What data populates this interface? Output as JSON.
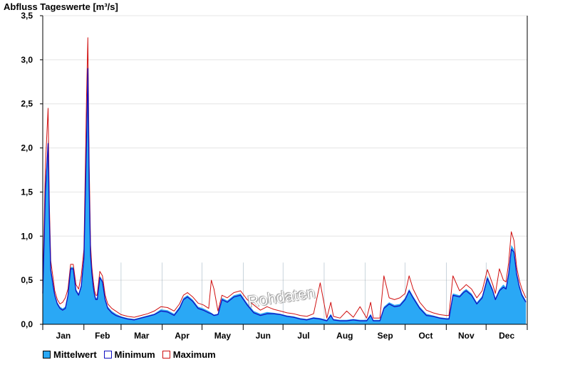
{
  "chart_data": {
    "type": "area",
    "title": "Abfluss Tageswerte [m³/s]",
    "ylim": [
      0,
      3.5
    ],
    "yticks": [
      "0,0",
      "0,5",
      "1,0",
      "1,5",
      "2,0",
      "2,5",
      "3,0",
      "3,5"
    ],
    "months": [
      "Jan",
      "Feb",
      "Mar",
      "Apr",
      "May",
      "Jun",
      "Jul",
      "Aug",
      "Sep",
      "Oct",
      "Nov",
      "Dec"
    ],
    "grid": true,
    "legend_position": "bottom-left",
    "x_day_of_year": [
      1,
      3,
      5,
      6,
      7,
      9,
      10,
      12,
      14,
      16,
      18,
      20,
      22,
      24,
      26,
      28,
      30,
      32,
      34,
      35,
      36,
      37,
      38,
      39,
      40,
      41,
      42,
      44,
      46,
      48,
      50,
      53,
      56,
      60,
      65,
      70,
      75,
      80,
      85,
      90,
      95,
      100,
      104,
      107,
      110,
      114,
      118,
      122,
      126,
      128,
      130,
      133,
      136,
      140,
      145,
      150,
      155,
      160,
      165,
      170,
      175,
      180,
      185,
      190,
      195,
      200,
      205,
      210,
      215,
      218,
      220,
      225,
      230,
      235,
      240,
      245,
      248,
      250,
      255,
      258,
      262,
      266,
      270,
      274,
      277,
      280,
      285,
      290,
      295,
      300,
      305,
      307,
      310,
      315,
      318,
      320,
      324,
      328,
      332,
      336,
      340,
      342,
      345,
      348,
      350,
      352,
      354,
      356,
      358,
      360,
      362,
      365
    ],
    "series": [
      {
        "name": "Mittelwert",
        "color": "#2aa8f5",
        "values": [
          0.37,
          1.6,
          2.1,
          1.25,
          0.65,
          0.45,
          0.35,
          0.25,
          0.2,
          0.18,
          0.2,
          0.35,
          0.65,
          0.65,
          0.4,
          0.35,
          0.45,
          0.8,
          2.2,
          2.95,
          1.6,
          0.8,
          0.6,
          0.45,
          0.35,
          0.3,
          0.3,
          0.55,
          0.5,
          0.3,
          0.2,
          0.15,
          0.12,
          0.09,
          0.07,
          0.06,
          0.08,
          0.1,
          0.12,
          0.17,
          0.16,
          0.12,
          0.2,
          0.3,
          0.33,
          0.28,
          0.2,
          0.18,
          0.15,
          0.13,
          0.11,
          0.12,
          0.3,
          0.27,
          0.33,
          0.35,
          0.24,
          0.15,
          0.12,
          0.14,
          0.13,
          0.12,
          0.1,
          0.09,
          0.07,
          0.06,
          0.08,
          0.07,
          0.05,
          0.12,
          0.06,
          0.05,
          0.05,
          0.06,
          0.05,
          0.05,
          0.12,
          0.05,
          0.05,
          0.2,
          0.25,
          0.22,
          0.23,
          0.3,
          0.4,
          0.32,
          0.2,
          0.12,
          0.1,
          0.08,
          0.07,
          0.07,
          0.35,
          0.33,
          0.38,
          0.4,
          0.35,
          0.25,
          0.32,
          0.55,
          0.4,
          0.3,
          0.4,
          0.45,
          0.42,
          0.6,
          0.9,
          0.85,
          0.6,
          0.45,
          0.35,
          0.27
        ]
      },
      {
        "name": "Minimum",
        "color": "#1010c0",
        "values": [
          0.35,
          1.5,
          2.05,
          1.2,
          0.62,
          0.42,
          0.33,
          0.23,
          0.18,
          0.16,
          0.18,
          0.33,
          0.63,
          0.63,
          0.38,
          0.33,
          0.43,
          0.75,
          2.1,
          2.9,
          1.55,
          0.78,
          0.58,
          0.43,
          0.33,
          0.28,
          0.28,
          0.53,
          0.48,
          0.28,
          0.18,
          0.13,
          0.1,
          0.08,
          0.06,
          0.05,
          0.07,
          0.09,
          0.11,
          0.15,
          0.14,
          0.1,
          0.18,
          0.28,
          0.31,
          0.26,
          0.18,
          0.16,
          0.13,
          0.12,
          0.1,
          0.11,
          0.28,
          0.25,
          0.31,
          0.33,
          0.22,
          0.13,
          0.1,
          0.12,
          0.12,
          0.11,
          0.09,
          0.08,
          0.06,
          0.05,
          0.07,
          0.06,
          0.04,
          0.1,
          0.05,
          0.04,
          0.04,
          0.05,
          0.04,
          0.04,
          0.1,
          0.04,
          0.04,
          0.18,
          0.23,
          0.2,
          0.21,
          0.28,
          0.38,
          0.3,
          0.18,
          0.1,
          0.09,
          0.07,
          0.06,
          0.06,
          0.33,
          0.31,
          0.36,
          0.38,
          0.33,
          0.23,
          0.3,
          0.52,
          0.38,
          0.28,
          0.38,
          0.42,
          0.4,
          0.57,
          0.85,
          0.82,
          0.57,
          0.43,
          0.33,
          0.25
        ]
      },
      {
        "name": "Maximum",
        "color": "#d01010",
        "values": [
          0.4,
          1.8,
          2.45,
          1.35,
          0.72,
          0.5,
          0.38,
          0.28,
          0.23,
          0.25,
          0.3,
          0.4,
          0.68,
          0.68,
          0.45,
          0.4,
          0.55,
          0.85,
          2.6,
          3.25,
          1.8,
          0.9,
          0.65,
          0.5,
          0.38,
          0.33,
          0.33,
          0.6,
          0.55,
          0.33,
          0.23,
          0.18,
          0.15,
          0.11,
          0.09,
          0.08,
          0.1,
          0.12,
          0.15,
          0.2,
          0.19,
          0.15,
          0.23,
          0.33,
          0.36,
          0.31,
          0.24,
          0.22,
          0.18,
          0.5,
          0.4,
          0.15,
          0.33,
          0.3,
          0.36,
          0.38,
          0.28,
          0.22,
          0.16,
          0.2,
          0.17,
          0.15,
          0.13,
          0.12,
          0.1,
          0.09,
          0.12,
          0.47,
          0.07,
          0.25,
          0.09,
          0.07,
          0.15,
          0.08,
          0.2,
          0.07,
          0.25,
          0.07,
          0.07,
          0.55,
          0.3,
          0.28,
          0.3,
          0.35,
          0.55,
          0.4,
          0.25,
          0.16,
          0.13,
          0.11,
          0.1,
          0.1,
          0.55,
          0.38,
          0.42,
          0.45,
          0.4,
          0.3,
          0.38,
          0.62,
          0.45,
          0.35,
          0.63,
          0.5,
          0.48,
          0.7,
          1.05,
          0.95,
          0.65,
          0.5,
          0.4,
          0.3
        ]
      }
    ]
  },
  "watermark": "Rohdaten"
}
